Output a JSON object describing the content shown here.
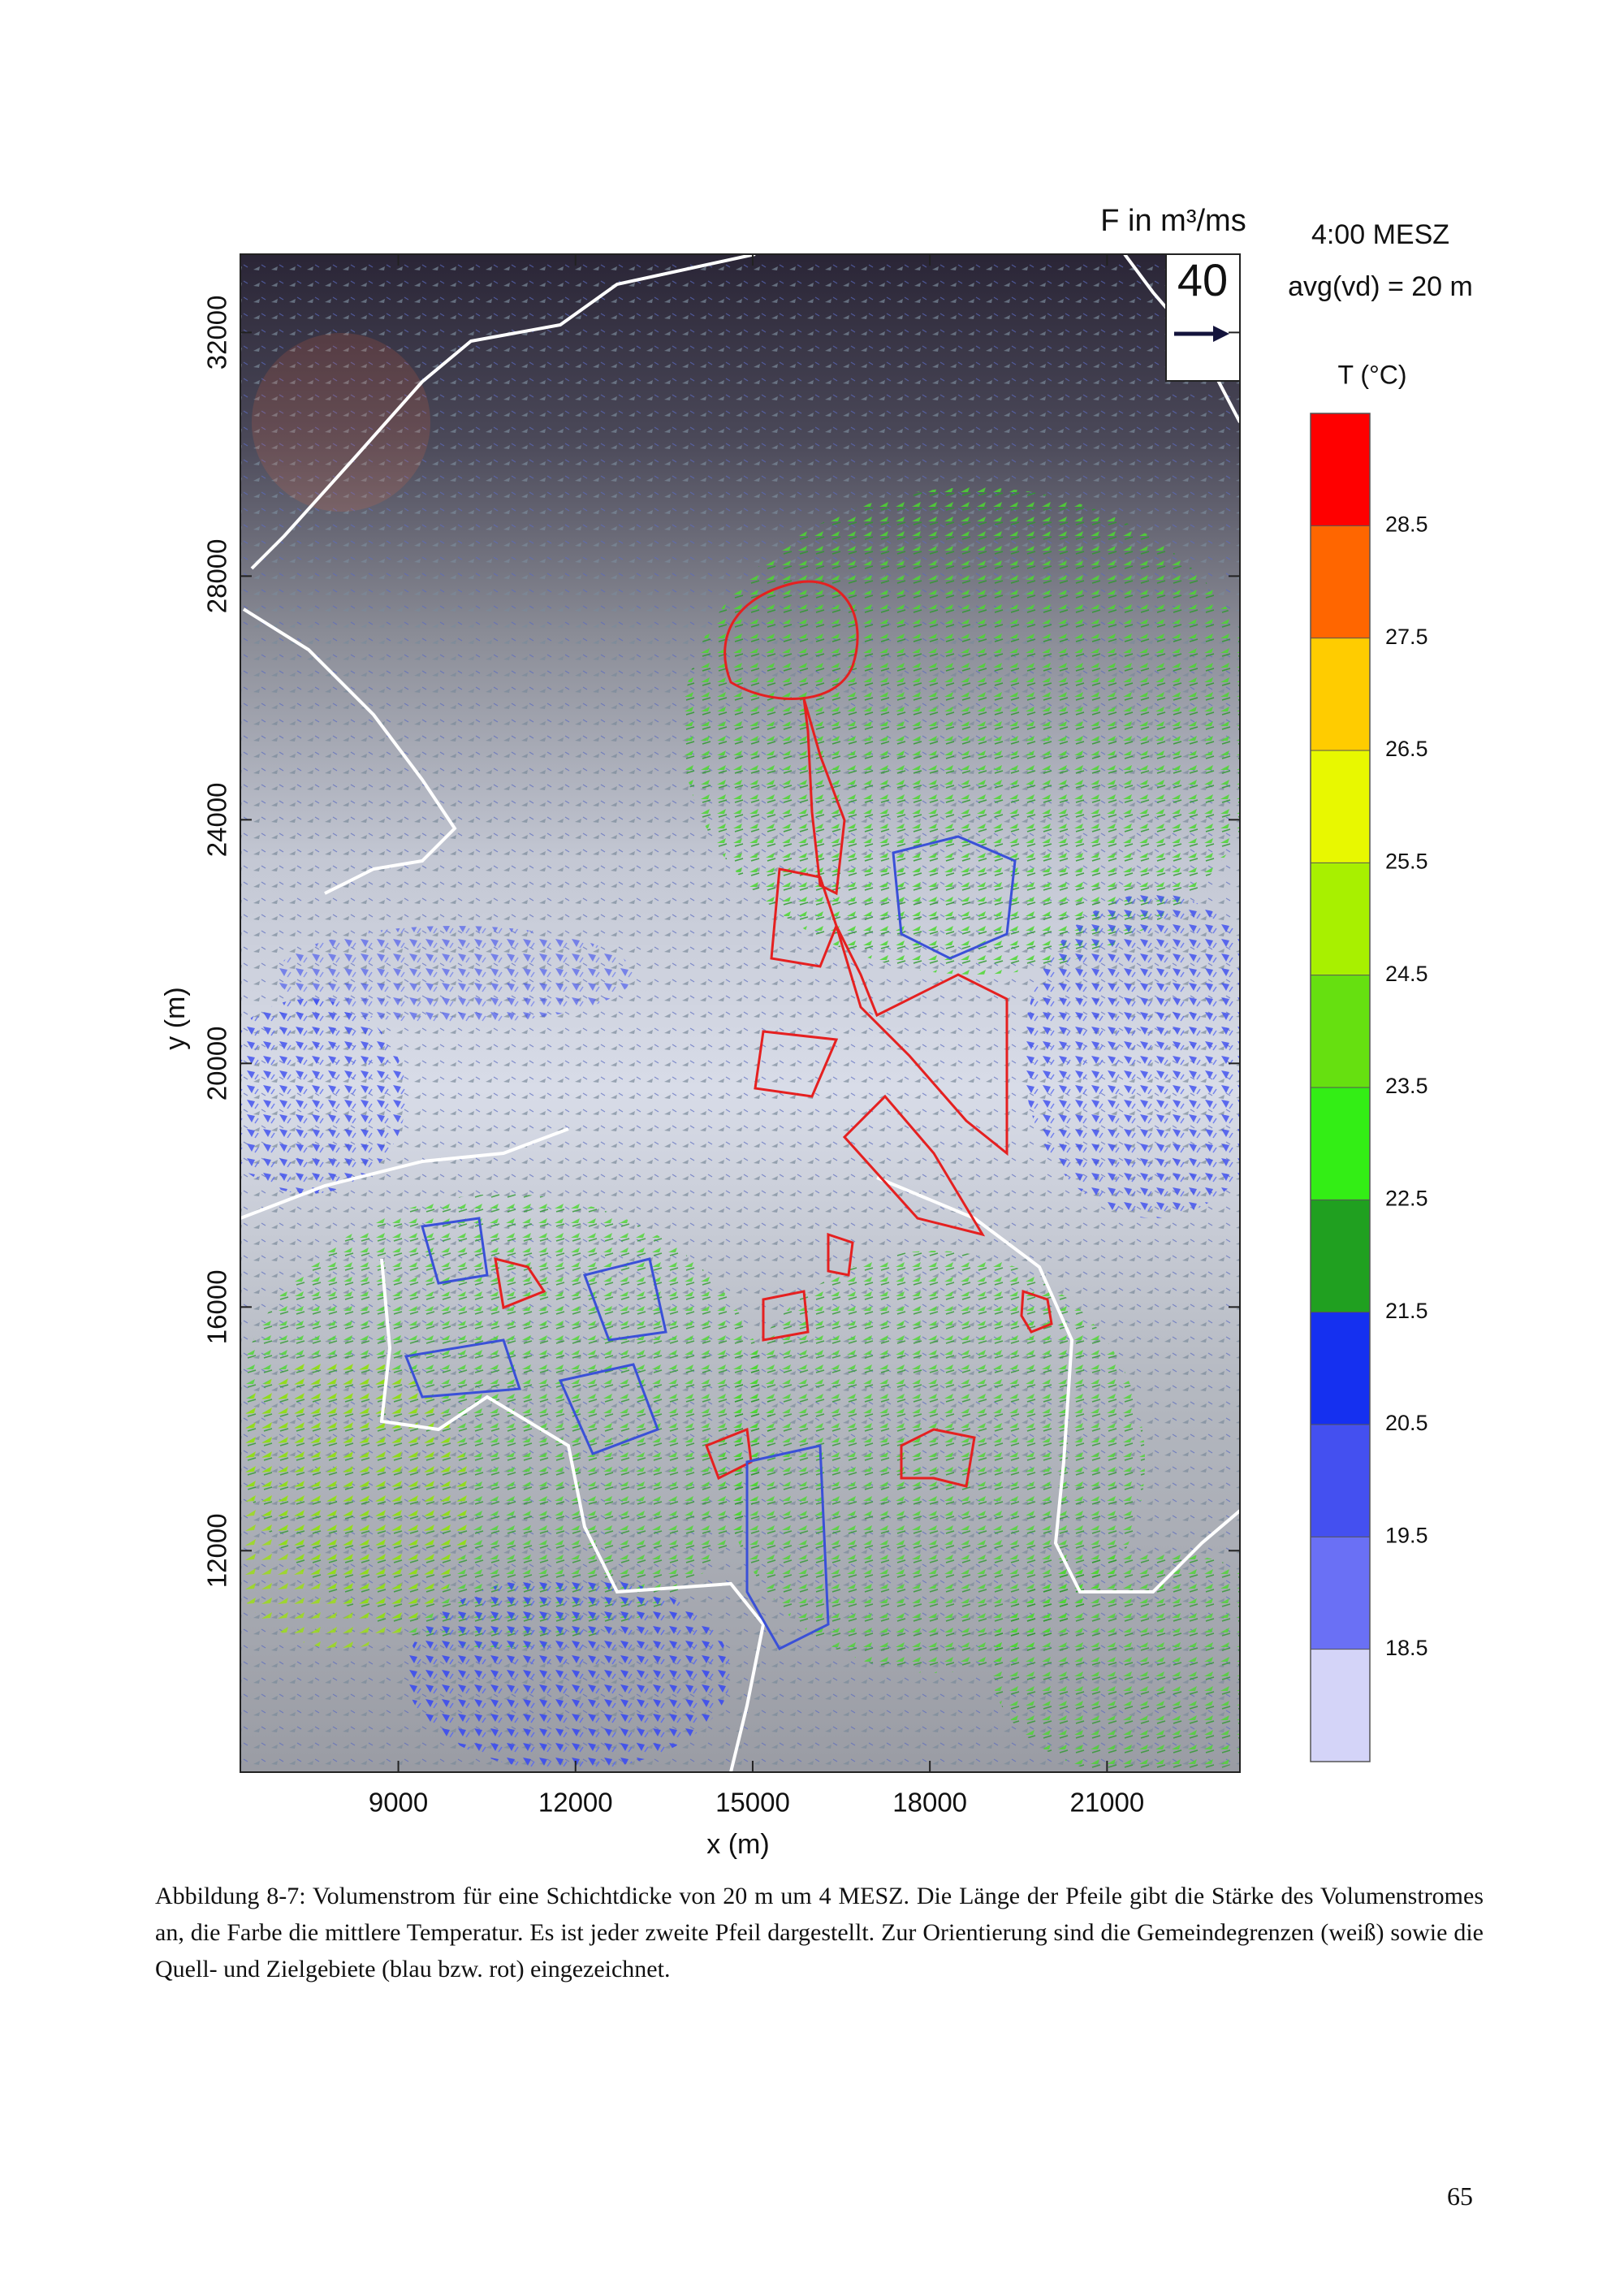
{
  "chart_data": {
    "type": "vector",
    "legend_title": "F in m³/ms",
    "time_label": "4:00 MESZ",
    "layer_label": "avg(vd) = 20 m",
    "reference_arrow": "40",
    "colorbar_title": "T (°C)",
    "xlabel": "x (m)",
    "ylabel": "y (m)",
    "xlim": [
      6325,
      23250
    ],
    "ylim": [
      8364,
      33285
    ],
    "xticks": [
      9000,
      12000,
      15000,
      18000,
      21000
    ],
    "yticks": [
      12000,
      16000,
      20000,
      24000,
      28000,
      32000
    ],
    "colorbar": {
      "levels": [
        18.5,
        19.5,
        20.5,
        21.5,
        22.5,
        23.5,
        24.5,
        25.5,
        26.5,
        27.5,
        28.5
      ],
      "colors": [
        "#d4d4f8",
        "#6a70f5",
        "#4450f0",
        "#1530f0",
        "#20a020",
        "#33ee15",
        "#66e010",
        "#a8f000",
        "#e8f800",
        "#ffcc00",
        "#ff6600",
        "#ff0000"
      ]
    }
  },
  "page": {
    "caption": "Abbildung 8-7: Volumenstrom für eine Schichtdicke von 20 m um 4 MESZ. Die Länge der Pfeile gibt die Stärke des Volumenstromes an, die Farbe die mittlere Temperatur. Es ist jeder zweite Pfeil dargestellt. Zur Orientierung sind die Gemeindegrenzen (weiß) sowie die Quell- und Zielgebiete (blau bzw. rot) eingezeichnet.",
    "page_number": "65"
  }
}
